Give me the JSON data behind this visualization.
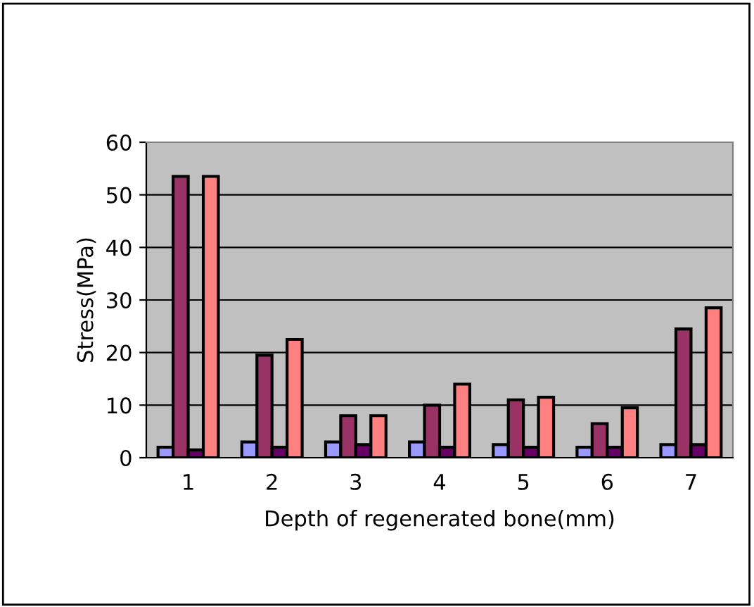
{
  "chart_data": {
    "type": "bar",
    "xlabel": "Depth of regenerated bone(mm)",
    "ylabel": "Stress(MPa)",
    "categories": [
      "1",
      "2",
      "3",
      "4",
      "5",
      "6",
      "7"
    ],
    "series": [
      {
        "color": "#9999ff",
        "values": [
          2,
          3,
          3,
          3,
          2.5,
          2,
          2.5
        ]
      },
      {
        "color": "#993366",
        "values": [
          53.5,
          19.5,
          8,
          10,
          11,
          6.5,
          24.5
        ]
      },
      {
        "color": "#660066",
        "values": [
          1.5,
          2,
          2.5,
          2,
          2,
          2,
          2.5
        ]
      },
      {
        "color": "#ff8080",
        "values": [
          53.5,
          22.5,
          8,
          14,
          11.5,
          9.5,
          28.5
        ]
      }
    ],
    "ylim": [
      0,
      60
    ],
    "yticks": [
      0,
      10,
      20,
      30,
      40,
      50,
      60
    ],
    "grid": "y"
  }
}
